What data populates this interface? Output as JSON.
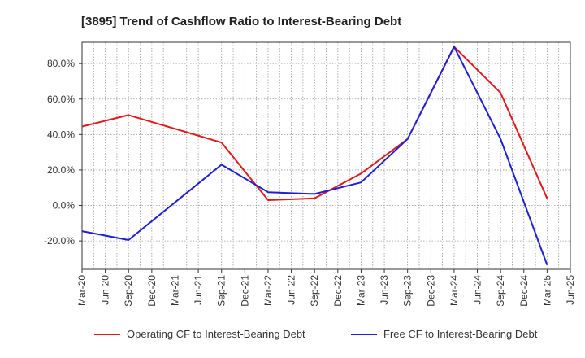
{
  "chart_data": {
    "type": "line",
    "title": "[3895]  Trend of Cashflow Ratio to Interest-Bearing Debt",
    "xlabel": "",
    "ylabel": "",
    "categories": [
      "Mar-20",
      "Jun-20",
      "Sep-20",
      "Dec-20",
      "Mar-21",
      "Jun-21",
      "Sep-21",
      "Dec-21",
      "Mar-22",
      "Jun-22",
      "Sep-22",
      "Dec-22",
      "Mar-23",
      "Jun-23",
      "Sep-23",
      "Dec-23",
      "Mar-24",
      "Jun-24",
      "Sep-24",
      "Dec-24",
      "Mar-25",
      "Jun-25"
    ],
    "y_ticks": [
      -20,
      0,
      20,
      40,
      60,
      80
    ],
    "y_tick_labels": [
      "-20.0%",
      "0.0%",
      "20.0%",
      "40.0%",
      "60.0%",
      "80.0%"
    ],
    "ylim": [
      -36,
      92
    ],
    "grid": true,
    "legend_position": "bottom",
    "series": [
      {
        "name": "Operating CF to Interest-Bearing Debt",
        "color": "#e31a1c",
        "values": [
          44.5,
          null,
          51,
          null,
          null,
          null,
          35.5,
          null,
          3,
          null,
          4,
          null,
          18,
          null,
          37.5,
          null,
          89.5,
          null,
          63.5,
          null,
          4,
          null
        ]
      },
      {
        "name": "Free CF to Interest-Bearing Debt",
        "color": "#1f1fd6",
        "values": [
          -14.5,
          null,
          -19.5,
          null,
          null,
          null,
          23,
          null,
          7.5,
          null,
          6.5,
          null,
          13,
          null,
          37.5,
          null,
          89.5,
          null,
          37.5,
          null,
          -33.5,
          null
        ]
      }
    ]
  }
}
